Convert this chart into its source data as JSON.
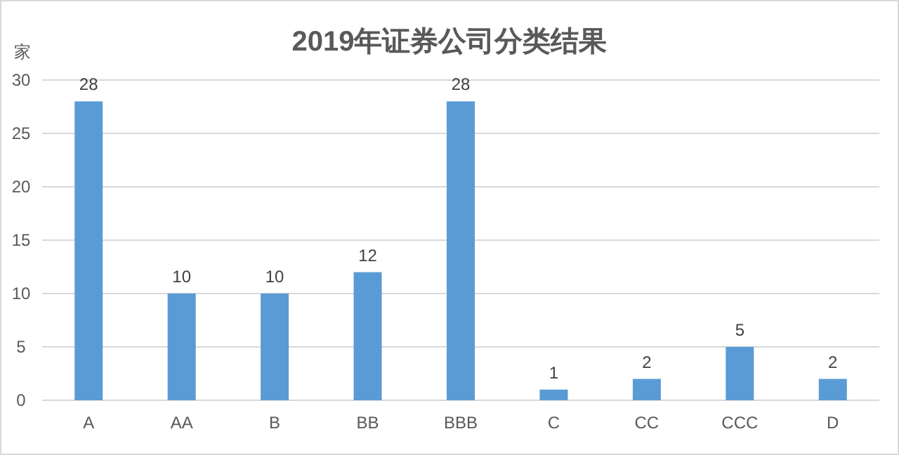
{
  "chart_data": {
    "type": "bar",
    "title": "2019年证券公司分类结果",
    "ylabel": "家",
    "categories": [
      "A",
      "AA",
      "B",
      "BB",
      "BBB",
      "C",
      "CC",
      "CCC",
      "D"
    ],
    "values": [
      28,
      10,
      10,
      12,
      28,
      1,
      2,
      5,
      2
    ],
    "color": "#5b9bd5",
    "ylim": [
      0,
      30
    ],
    "yticks": [
      0,
      5,
      10,
      15,
      20,
      25,
      30
    ],
    "grid": "y",
    "data_labels": true
  }
}
